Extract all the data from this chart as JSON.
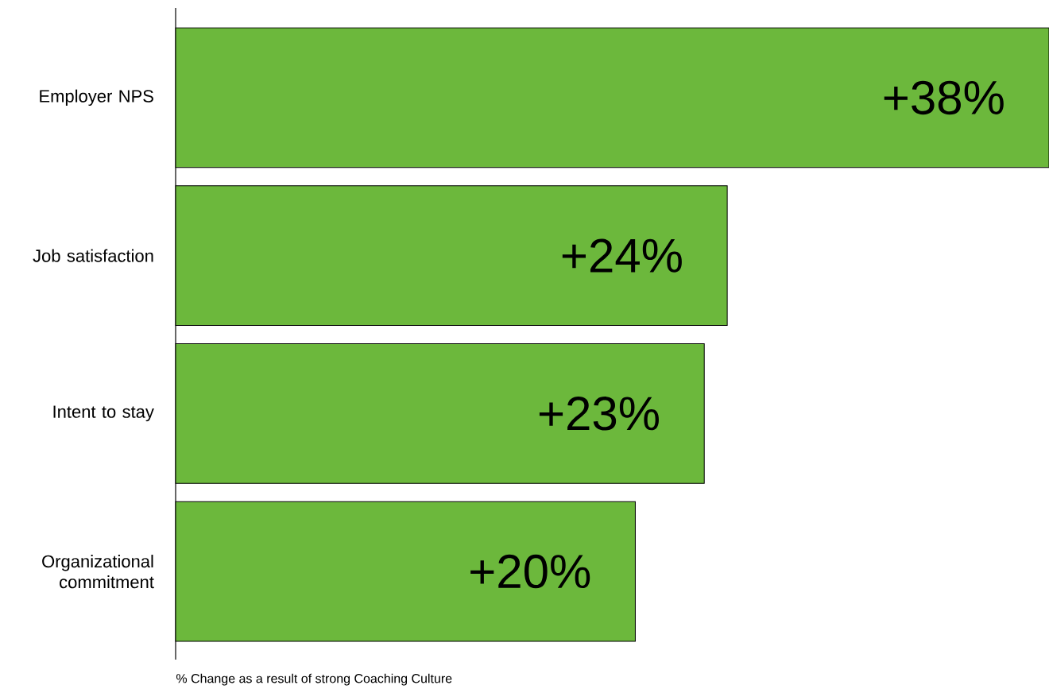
{
  "chart_data": {
    "type": "bar",
    "orientation": "horizontal",
    "relative": false,
    "categories": [
      "Employer NPS",
      "Job satisfaction",
      "Intent to stay",
      "Organizational commitment"
    ],
    "values": [
      38,
      24,
      23,
      20
    ],
    "value_labels": [
      "+38%",
      "+24%",
      "+23%",
      "+20%"
    ],
    "color": "#6cb83c",
    "annotations": [
      "% Change as a result of strong Coaching Culture"
    ]
  }
}
